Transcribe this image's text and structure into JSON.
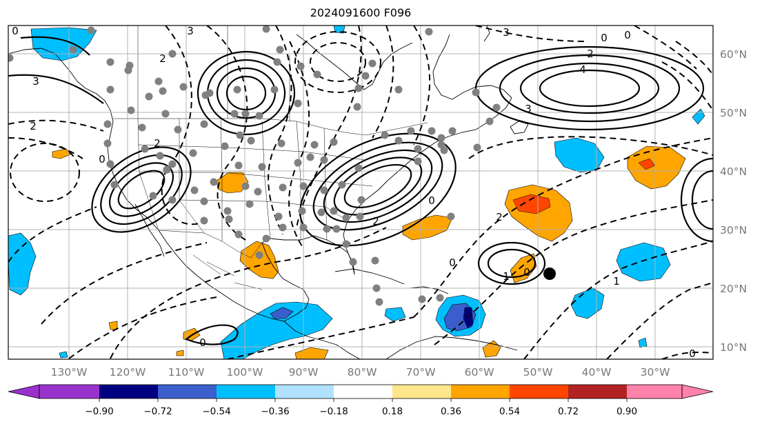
{
  "title": "2024091600 F096",
  "map": {
    "projection": "lat-lon",
    "lon_range": [
      -142,
      -22
    ],
    "lat_range": [
      8,
      65
    ],
    "lon_labels": [
      "130°W",
      "120°W",
      "110°W",
      "100°W",
      "90°W",
      "80°W",
      "70°W",
      "60°W",
      "50°W",
      "40°W",
      "30°W"
    ],
    "lat_labels": [
      "60°N",
      "50°N",
      "40°N",
      "30°N",
      "20°N",
      "10°N"
    ],
    "gridlines": true,
    "storm_marker": {
      "lon": -47,
      "lat": 22.5,
      "color": "#000000"
    }
  },
  "contour_labels": [
    "0",
    "3",
    "3",
    "4",
    "2",
    "2",
    "3",
    "2",
    "3",
    "0",
    "0",
    "0",
    "2",
    "2",
    "0",
    "0",
    "0",
    "2",
    "1",
    "1",
    "0",
    "0"
  ],
  "colorbar": {
    "ticks": [
      "−0.90",
      "−0.72",
      "−0.54",
      "−0.36",
      "−0.18",
      "0.18",
      "0.36",
      "0.54",
      "0.72",
      "0.90"
    ],
    "colors": [
      "#9932cc",
      "#000080",
      "#3a5fcd",
      "#00bfff",
      "#b0e2ff",
      "#ffffff",
      "#ffe68a",
      "#ffa500",
      "#ff4500",
      "#b22222",
      "#ff82ab"
    ],
    "extend": "both"
  }
}
